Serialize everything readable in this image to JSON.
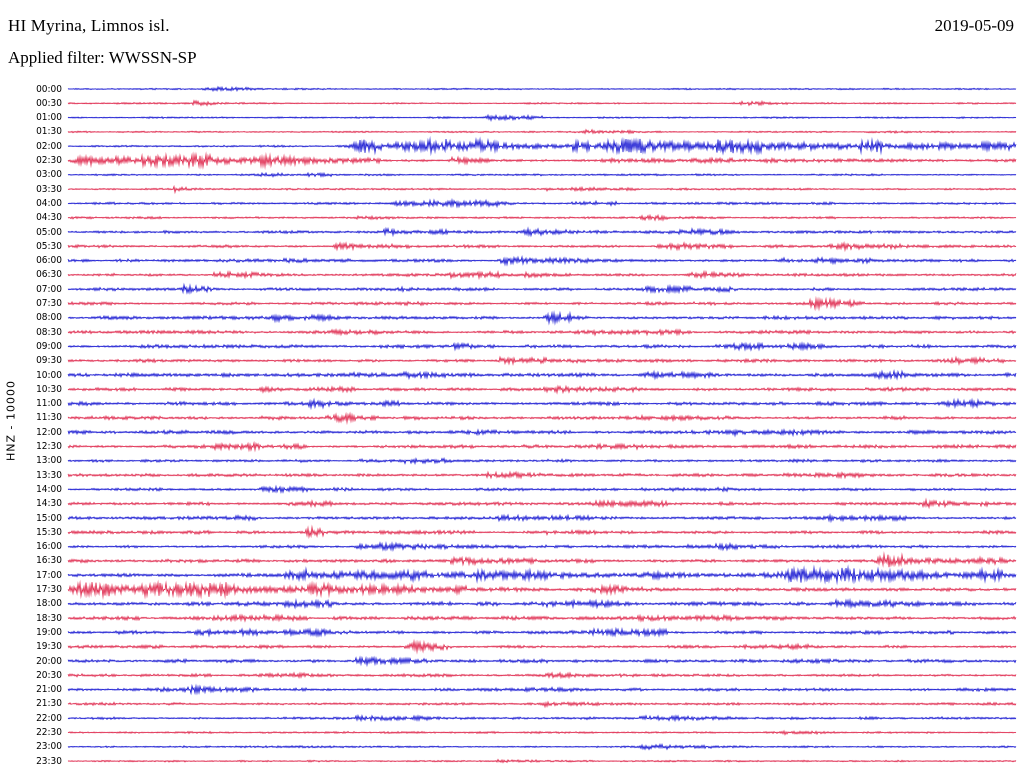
{
  "header": {
    "station_title": "HI Myrina, Limnos isl.",
    "date": "2019-05-09",
    "filter_label": "Applied filter: WWSSN-SP"
  },
  "axis": {
    "channel_label": "HNZ - 10000"
  },
  "colors": {
    "blue": "#0000cd",
    "red": "#dc143c",
    "background": "#ffffff",
    "text": "#000000"
  },
  "chart_data": {
    "type": "line",
    "subtype": "helicorder-seismogram",
    "title": "HI Myrina, Limnos isl.",
    "date": "2019-05-09",
    "filter": "WWSSN-SP",
    "channel": "HNZ",
    "gain": "10000",
    "row_duration_minutes": 30,
    "legend": "alternating blue/red traces, one 30-minute row each, 00:00 to 23:30",
    "rows": [
      {
        "t": "00:00",
        "color": "blue",
        "base": 0.5,
        "bursts": [
          [
            0.14,
            0.2,
            1.2
          ]
        ]
      },
      {
        "t": "00:30",
        "color": "red",
        "base": 0.5,
        "bursts": [
          [
            0.13,
            0.17,
            1.5
          ],
          [
            0.7,
            0.76,
            1.2
          ]
        ]
      },
      {
        "t": "01:00",
        "color": "blue",
        "base": 0.5,
        "bursts": [
          [
            0.44,
            0.5,
            1.4
          ]
        ]
      },
      {
        "t": "01:30",
        "color": "red",
        "base": 0.5,
        "bursts": [
          [
            0.54,
            0.6,
            1.2
          ],
          [
            0.84,
            0.9,
            1.2
          ]
        ]
      },
      {
        "t": "02:00",
        "color": "blue",
        "base": 0.6,
        "bursts": [
          [
            0.295,
            0.55,
            6.0
          ],
          [
            0.55,
            1.0,
            5.5
          ]
        ]
      },
      {
        "t": "02:30",
        "color": "red",
        "base": 0.8,
        "bursts": [
          [
            0.0,
            0.33,
            5.0
          ],
          [
            0.4,
            0.45,
            2.0
          ],
          [
            0.55,
            1.0,
            0.9
          ]
        ]
      },
      {
        "t": "03:00",
        "color": "blue",
        "base": 0.6,
        "bursts": [
          [
            0.2,
            0.3,
            0.9
          ]
        ]
      },
      {
        "t": "03:30",
        "color": "red",
        "base": 0.6,
        "bursts": [
          [
            0.11,
            0.15,
            1.8
          ],
          [
            0.5,
            0.6,
            0.9
          ]
        ]
      },
      {
        "t": "04:00",
        "color": "blue",
        "base": 0.8,
        "bursts": [
          [
            0.34,
            0.47,
            2.2
          ],
          [
            0.53,
            0.58,
            1.5
          ]
        ]
      },
      {
        "t": "04:30",
        "color": "red",
        "base": 0.7,
        "bursts": [
          [
            0.3,
            0.4,
            1.0
          ],
          [
            0.6,
            0.7,
            1.0
          ]
        ]
      },
      {
        "t": "05:00",
        "color": "blue",
        "base": 0.9,
        "bursts": [
          [
            0.33,
            0.4,
            1.8
          ],
          [
            0.48,
            0.56,
            1.6
          ],
          [
            0.63,
            0.7,
            1.8
          ]
        ]
      },
      {
        "t": "05:30",
        "color": "red",
        "base": 1.0,
        "bursts": [
          [
            0.28,
            0.36,
            2.0
          ],
          [
            0.62,
            0.7,
            2.2
          ],
          [
            0.8,
            0.88,
            1.4
          ]
        ]
      },
      {
        "t": "06:00",
        "color": "blue",
        "base": 1.0,
        "bursts": [
          [
            0.2,
            0.3,
            1.5
          ],
          [
            0.45,
            0.55,
            1.5
          ],
          [
            0.75,
            0.85,
            1.6
          ]
        ]
      },
      {
        "t": "06:30",
        "color": "red",
        "base": 1.0,
        "bursts": [
          [
            0.15,
            0.25,
            1.6
          ],
          [
            0.4,
            0.5,
            1.5
          ],
          [
            0.65,
            0.75,
            1.4
          ]
        ]
      },
      {
        "t": "07:00",
        "color": "blue",
        "base": 1.0,
        "bursts": [
          [
            0.12,
            0.16,
            2.0
          ],
          [
            0.35,
            0.45,
            1.4
          ],
          [
            0.6,
            0.7,
            1.4
          ]
        ]
      },
      {
        "t": "07:30",
        "color": "red",
        "base": 1.0,
        "bursts": [
          [
            0.3,
            0.38,
            1.6
          ],
          [
            0.78,
            0.84,
            2.6
          ]
        ]
      },
      {
        "t": "08:00",
        "color": "blue",
        "base": 1.1,
        "bursts": [
          [
            0.2,
            0.3,
            1.5
          ],
          [
            0.5,
            0.56,
            2.6
          ]
        ]
      },
      {
        "t": "08:30",
        "color": "red",
        "base": 1.1,
        "bursts": [
          [
            0.25,
            0.35,
            1.6
          ],
          [
            0.55,
            0.65,
            1.6
          ]
        ]
      },
      {
        "t": "09:00",
        "color": "blue",
        "base": 1.1,
        "bursts": [
          [
            0.35,
            0.45,
            1.5
          ],
          [
            0.7,
            0.8,
            1.5
          ]
        ]
      },
      {
        "t": "09:30",
        "color": "red",
        "base": 1.1,
        "bursts": [
          [
            0.45,
            0.55,
            1.6
          ],
          [
            0.93,
            0.99,
            2.0
          ]
        ]
      },
      {
        "t": "10:00",
        "color": "blue",
        "base": 1.2,
        "bursts": [
          [
            0.3,
            0.4,
            1.6
          ],
          [
            0.6,
            0.7,
            1.5
          ],
          [
            0.85,
            0.95,
            1.8
          ]
        ]
      },
      {
        "t": "10:30",
        "color": "red",
        "base": 1.2,
        "bursts": [
          [
            0.2,
            0.3,
            1.5
          ],
          [
            0.5,
            0.6,
            1.5
          ]
        ]
      },
      {
        "t": "11:00",
        "color": "blue",
        "base": 1.2,
        "bursts": [
          [
            0.25,
            0.35,
            1.6
          ],
          [
            0.92,
            0.98,
            2.6
          ]
        ]
      },
      {
        "t": "11:30",
        "color": "red",
        "base": 1.2,
        "bursts": [
          [
            0.27,
            0.33,
            2.2
          ],
          [
            0.6,
            0.7,
            1.5
          ]
        ]
      },
      {
        "t": "12:00",
        "color": "blue",
        "base": 1.2,
        "bursts": [
          [
            0.4,
            0.5,
            1.5
          ],
          [
            0.7,
            0.8,
            1.4
          ]
        ]
      },
      {
        "t": "12:30",
        "color": "red",
        "base": 1.1,
        "bursts": [
          [
            0.15,
            0.25,
            1.5
          ],
          [
            0.55,
            0.65,
            1.4
          ]
        ]
      },
      {
        "t": "13:00",
        "color": "blue",
        "base": 1.0,
        "bursts": [
          [
            0.3,
            0.4,
            1.3
          ]
        ]
      },
      {
        "t": "13:30",
        "color": "red",
        "base": 1.0,
        "bursts": [
          [
            0.44,
            0.5,
            2.0
          ],
          [
            0.75,
            0.85,
            1.3
          ]
        ]
      },
      {
        "t": "14:00",
        "color": "blue",
        "base": 0.9,
        "bursts": [
          [
            0.2,
            0.3,
            1.2
          ],
          [
            0.6,
            0.7,
            1.2
          ]
        ]
      },
      {
        "t": "14:30",
        "color": "red",
        "base": 1.0,
        "bursts": [
          [
            0.23,
            0.28,
            2.2
          ],
          [
            0.55,
            0.65,
            1.4
          ],
          [
            0.9,
            0.97,
            1.8
          ]
        ]
      },
      {
        "t": "15:00",
        "color": "blue",
        "base": 1.1,
        "bursts": [
          [
            0.12,
            0.2,
            1.5
          ],
          [
            0.45,
            0.55,
            1.4
          ],
          [
            0.8,
            0.9,
            1.5
          ]
        ]
      },
      {
        "t": "15:30",
        "color": "red",
        "base": 1.1,
        "bursts": [
          [
            0.25,
            0.27,
            3.5
          ],
          [
            0.5,
            0.6,
            1.4
          ]
        ]
      },
      {
        "t": "16:00",
        "color": "blue",
        "base": 1.1,
        "bursts": [
          [
            0.3,
            0.4,
            1.5
          ],
          [
            0.65,
            0.75,
            1.4
          ]
        ]
      },
      {
        "t": "16:30",
        "color": "red",
        "base": 1.1,
        "bursts": [
          [
            0.4,
            0.5,
            1.4
          ],
          [
            0.85,
            1.0,
            3.2
          ]
        ]
      },
      {
        "t": "17:00",
        "color": "blue",
        "base": 1.2,
        "bursts": [
          [
            0.22,
            0.75,
            3.2
          ],
          [
            0.75,
            1.0,
            5.0
          ]
        ]
      },
      {
        "t": "17:30",
        "color": "red",
        "base": 1.4,
        "bursts": [
          [
            0.0,
            0.42,
            5.2
          ],
          [
            0.55,
            0.65,
            1.6
          ]
        ]
      },
      {
        "t": "18:00",
        "color": "blue",
        "base": 1.3,
        "bursts": [
          [
            0.2,
            0.3,
            1.8
          ],
          [
            0.5,
            0.6,
            1.6
          ],
          [
            0.8,
            0.9,
            1.6
          ]
        ]
      },
      {
        "t": "18:30",
        "color": "red",
        "base": 1.2,
        "bursts": [
          [
            0.15,
            0.25,
            1.5
          ],
          [
            0.6,
            0.7,
            1.5
          ]
        ]
      },
      {
        "t": "19:00",
        "color": "blue",
        "base": 1.2,
        "bursts": [
          [
            0.13,
            0.3,
            1.8
          ],
          [
            0.55,
            0.65,
            1.5
          ]
        ]
      },
      {
        "t": "19:30",
        "color": "red",
        "base": 1.1,
        "bursts": [
          [
            0.36,
            0.4,
            2.4
          ],
          [
            0.7,
            0.8,
            1.4
          ]
        ]
      },
      {
        "t": "20:00",
        "color": "blue",
        "base": 1.1,
        "bursts": [
          [
            0.3,
            0.4,
            1.5
          ],
          [
            0.75,
            0.85,
            1.5
          ]
        ]
      },
      {
        "t": "20:30",
        "color": "red",
        "base": 1.0,
        "bursts": [
          [
            0.2,
            0.3,
            1.3
          ],
          [
            0.5,
            0.6,
            1.2
          ]
        ]
      },
      {
        "t": "21:00",
        "color": "blue",
        "base": 1.0,
        "bursts": [
          [
            0.08,
            0.2,
            1.7
          ],
          [
            0.45,
            0.55,
            1.3
          ]
        ]
      },
      {
        "t": "21:30",
        "color": "red",
        "base": 0.9,
        "bursts": [
          [
            0.5,
            0.56,
            1.6
          ]
        ]
      },
      {
        "t": "22:00",
        "color": "blue",
        "base": 0.8,
        "bursts": [
          [
            0.3,
            0.4,
            1.2
          ],
          [
            0.6,
            0.7,
            1.1
          ]
        ]
      },
      {
        "t": "22:30",
        "color": "red",
        "base": 0.6,
        "bursts": [
          [
            0.75,
            0.8,
            0.9
          ]
        ]
      },
      {
        "t": "23:00",
        "color": "blue",
        "base": 0.6,
        "bursts": [
          [
            0.6,
            0.68,
            1.2
          ]
        ]
      },
      {
        "t": "23:30",
        "color": "red",
        "base": 0.5,
        "bursts": [
          [
            0.45,
            0.5,
            0.8
          ]
        ]
      }
    ]
  }
}
